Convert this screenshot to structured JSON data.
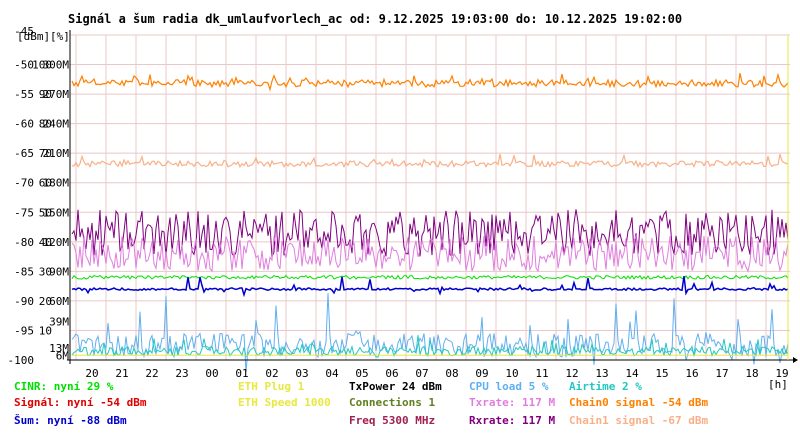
{
  "chart_data": {
    "type": "line",
    "title": "Signál a šum radia dk_umlaufvorlech_ac od: 9.12.2025 19:03:00 do: 10.12.2025 19:02:00",
    "units": [
      "[dBm]",
      "[%]"
    ],
    "xlabel": "[h]",
    "x_ticks": [
      "20",
      "21",
      "22",
      "23",
      "00",
      "01",
      "02",
      "03",
      "04",
      "05",
      "06",
      "07",
      "08",
      "09",
      "10",
      "11",
      "12",
      "13",
      "14",
      "15",
      "16",
      "17",
      "18",
      "19"
    ],
    "y_dbm_ticks": [
      "-45",
      "-50",
      "-55",
      "-60",
      "-65",
      "-70",
      "-75",
      "-80",
      "-85",
      "-90",
      "-95",
      "-100"
    ],
    "y_pct_ticks": [
      "100",
      "90",
      "80",
      "70",
      "60",
      "50",
      "40",
      "30",
      "20",
      "10"
    ],
    "y_rate_ticks": [
      "300M",
      "270M",
      "240M",
      "210M",
      "180M",
      "150M",
      "120M",
      "90M",
      "60M"
    ],
    "y_extra_ticks": [
      {
        "text": "39M",
        "color": "#e07ee0",
        "dbm": -93.5
      },
      {
        "text": "13M",
        "color": "#e07ee0",
        "dbm": -98.0
      },
      {
        "text": "6M",
        "color": "#e07ee0",
        "dbm": -99.2
      }
    ],
    "ylim_dbm": [
      -100,
      -45
    ],
    "grid": true,
    "series": [
      {
        "name": "Chain0 signal -54 dBm",
        "color": "#ff8000",
        "base": -53.2,
        "amp": 0.6,
        "spike": 1.2,
        "width": 1.2
      },
      {
        "name": "Chain1 signal -67 dBm",
        "color": "#f8b088",
        "base": -66.8,
        "amp": 0.5,
        "spike": 1.2,
        "width": 1.2
      },
      {
        "name": "Rxrate: 117 M",
        "color": "#800080",
        "base": -78.5,
        "amp": 4.0,
        "spike": 0.0,
        "width": 1.0
      },
      {
        "name": "Txrate: 117 M",
        "color": "#e07ee0",
        "base": -82.0,
        "amp": 3.0,
        "spike": 0.0,
        "width": 1.0
      },
      {
        "name": "CINR: nyní 29 %",
        "color": "#00e000",
        "base": -86.0,
        "amp": 0.3,
        "spike": 0.0,
        "width": 1.0
      },
      {
        "name": "Šum: nyní -88 dBm",
        "color": "#0000cc",
        "base": -88.0,
        "amp": 0.2,
        "spike": 1.5,
        "width": 1.5
      },
      {
        "name": "CPU load 5 %",
        "color": "#60b0f0",
        "base": -97.5,
        "amp": 2.0,
        "spike": 6.0,
        "width": 1.0
      },
      {
        "name": "Airtime 2 %",
        "color": "#20c8c0",
        "base": -98.5,
        "amp": 0.8,
        "spike": 1.5,
        "width": 1.0
      },
      {
        "name": "ETH Plug 1",
        "color": "#e8e840",
        "base": -99.2,
        "amp": 0.0,
        "spike": 0.0,
        "width": 1.0
      }
    ],
    "legend": [
      {
        "text": "CINR: nyní 29 %",
        "color": "#00e000",
        "col": 0,
        "row": 0
      },
      {
        "text": "Signál: nyní -54 dBm",
        "color": "#e00000",
        "col": 0,
        "row": 1
      },
      {
        "text": "Šum: nyní -88 dBm",
        "color": "#0000cc",
        "col": 0,
        "row": 2
      },
      {
        "text": "ETH Plug 1",
        "color": "#e8e840",
        "col": 1,
        "row": 0
      },
      {
        "text": "ETH Speed 1000",
        "color": "#e8e840",
        "col": 1,
        "row": 1
      },
      {
        "text": "TxPower 24 dBm",
        "color": "#000000",
        "col": 2,
        "row": 0
      },
      {
        "text": "Connections 1",
        "color": "#608020",
        "col": 2,
        "row": 1
      },
      {
        "text": "Freq 5300 MHz",
        "color": "#a02050",
        "col": 2,
        "row": 2
      },
      {
        "text": "CPU load 5 %",
        "color": "#60b0f0",
        "col": 3,
        "row": 0
      },
      {
        "text": "Txrate: 117 M",
        "color": "#e07ee0",
        "col": 3,
        "row": 1
      },
      {
        "text": "Rxrate: 117 M",
        "color": "#800080",
        "col": 3,
        "row": 2
      },
      {
        "text": "Airtime 2 %",
        "color": "#20c8c0",
        "col": 4,
        "row": 0
      },
      {
        "text": "Chain0 signal -54 dBm",
        "color": "#ff8000",
        "col": 4,
        "row": 1
      },
      {
        "text": "Chain1 signal -67 dBm",
        "color": "#f8b088",
        "col": 4,
        "row": 2
      }
    ],
    "legend_placement": "bottom"
  }
}
